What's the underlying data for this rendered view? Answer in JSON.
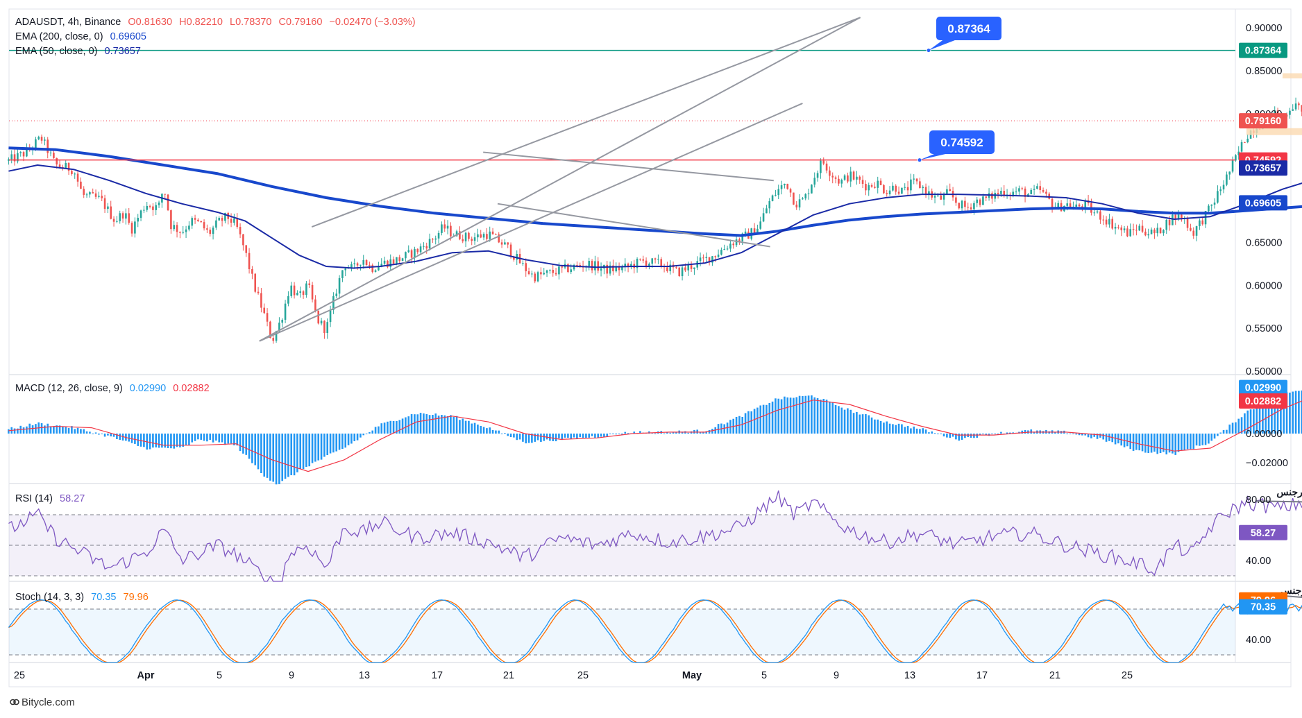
{
  "header": {
    "symbol": "ADAUSDT, 4h, Binance",
    "o": "O0.81630",
    "h": "H0.82210",
    "l": "L0.78370",
    "c": "C0.79160",
    "change": "−0.02470 (−3.03%)",
    "ema200_label": "EMA (200, close, 0)",
    "ema200_value": "0.69605",
    "ema50_label": "EMA (50, close, 0)",
    "ema50_value": "0.73657"
  },
  "colors": {
    "up": "#26a69a",
    "down": "#ef5350",
    "ema200": "#1848cc",
    "ema50": "#1a2aa6",
    "macd": "#2196f3",
    "signal": "#f23645",
    "rsi": "#7e57c2",
    "stochK": "#2196f3",
    "stochD": "#ff6d00",
    "callout": "#2962ff",
    "hline_green": "#089981",
    "hline_red": "#f23645"
  },
  "callouts": {
    "upper": "0.87364",
    "lower": "0.74592"
  },
  "price_axis": {
    "ticks": [
      "0.90000",
      "0.85000",
      "0.80000",
      "0.75000",
      "0.70000",
      "0.65000",
      "0.60000",
      "0.55000",
      "0.50000"
    ],
    "tags": {
      "green_line": "0.87364",
      "last": "0.79160",
      "red_line": "0.74592",
      "ema50": "0.73657",
      "ema200": "0.69605"
    }
  },
  "macd": {
    "label": "MACD (12, 26, close, 9)",
    "macd_value": "0.02990",
    "signal_value": "0.02882",
    "ticks": [
      "0.02000",
      "0.00000",
      "−0.02000"
    ]
  },
  "rsi": {
    "label": "RSI (14)",
    "value": "58.27",
    "ticks": [
      "80.00",
      "40.00"
    ],
    "annotation": "دایورجنس"
  },
  "stoch": {
    "label": "Stoch (14, 3, 3)",
    "k_value": "70.35",
    "d_value": "79.96",
    "ticks": [
      "40.00"
    ],
    "annotation": "دایورجنس"
  },
  "time_axis": {
    "labels": [
      "25",
      "Apr",
      "5",
      "9",
      "13",
      "17",
      "21",
      "25",
      "May",
      "5",
      "9",
      "13",
      "17",
      "21",
      "25"
    ]
  },
  "watermark": "Bitycle.com",
  "chart_data": {
    "type": "line",
    "title": "ADAUSDT, 4h, Binance",
    "ylim": [
      0.5,
      0.91
    ],
    "x": [
      "Mar 25",
      "Apr 1",
      "Apr 5",
      "Apr 9",
      "Apr 13",
      "Apr 17",
      "Apr 21",
      "Apr 25",
      "May 1",
      "May 5",
      "May 9",
      "May 11"
    ],
    "series": [
      {
        "name": "ADAUSDT",
        "values": [
          0.745,
          0.695,
          0.665,
          0.535,
          0.665,
          0.605,
          0.62,
          0.745,
          0.7,
          0.66,
          0.79,
          0.7916
        ]
      },
      {
        "name": "EMA (200, close, 0)",
        "values": [
          0.76,
          0.735,
          0.705,
          0.685,
          0.675,
          0.665,
          0.658,
          0.672,
          0.69,
          0.688,
          0.685,
          0.69605
        ]
      },
      {
        "name": "EMA (50, close, 0)",
        "values": [
          0.735,
          0.71,
          0.675,
          0.6,
          0.635,
          0.624,
          0.628,
          0.678,
          0.7,
          0.675,
          0.71,
          0.73657
        ]
      }
    ],
    "horizontal_levels": [
      0.87364,
      0.74592
    ]
  }
}
